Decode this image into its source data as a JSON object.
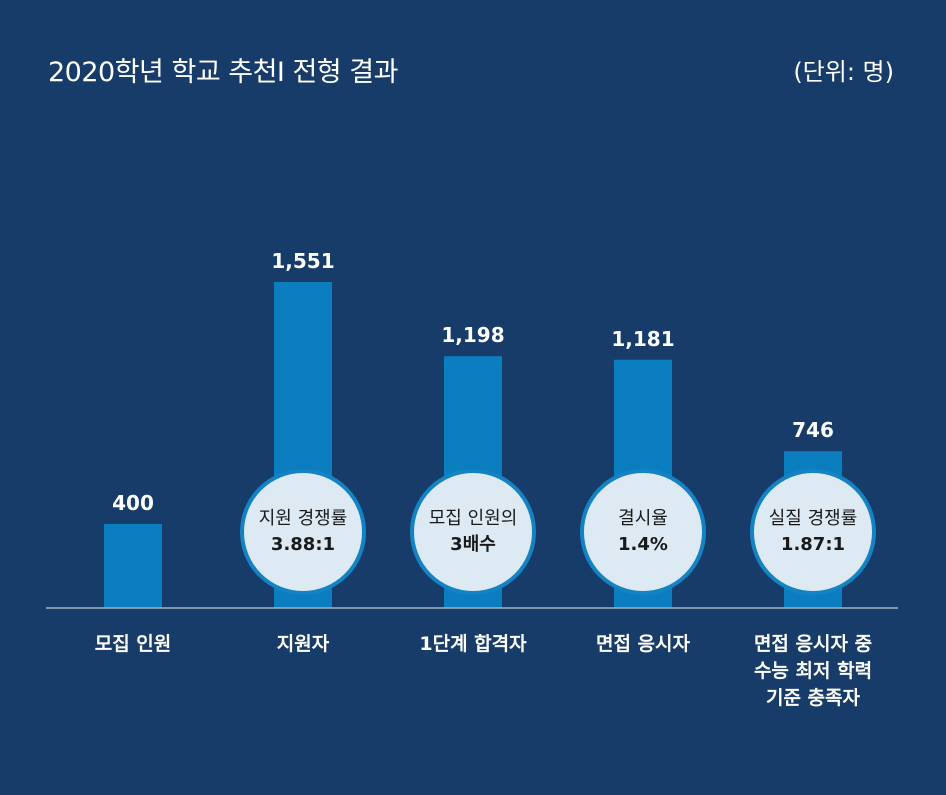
{
  "header": {
    "title": "2020학년 학교 추천Ⅰ  전형 결과",
    "unit": "(단위: 명)"
  },
  "colors": {
    "background": "#173c69",
    "bar": "#0a7ebf",
    "bubble_fill": "#dde9f3",
    "bubble_border": "#1483c4"
  },
  "chart_data": {
    "type": "bar",
    "title": "2020학년 학교 추천Ⅰ  전형 결과",
    "unit": "(단위: 명)",
    "categories": [
      [
        "모집 인원"
      ],
      [
        "지원자"
      ],
      [
        "1단계 합격자"
      ],
      [
        "면접 응시자"
      ],
      [
        "면접 응시자 중",
        "수능 최저 학력",
        "기준 충족자"
      ]
    ],
    "values": [
      400,
      1551,
      1198,
      1181,
      746
    ],
    "value_labels": [
      "400",
      "1,551",
      "1,198",
      "1,181",
      "746"
    ],
    "ylim": [
      0,
      1600
    ],
    "grid": false,
    "annotations": [
      null,
      {
        "line1": "지원 경쟁률",
        "line2": "3.88:1"
      },
      {
        "line1": "모집 인원의",
        "line2": "3배수"
      },
      {
        "line1": "결시율",
        "line2": "1.4%"
      },
      {
        "line1": "실질 경쟁률",
        "line2": "1.87:1"
      }
    ]
  }
}
